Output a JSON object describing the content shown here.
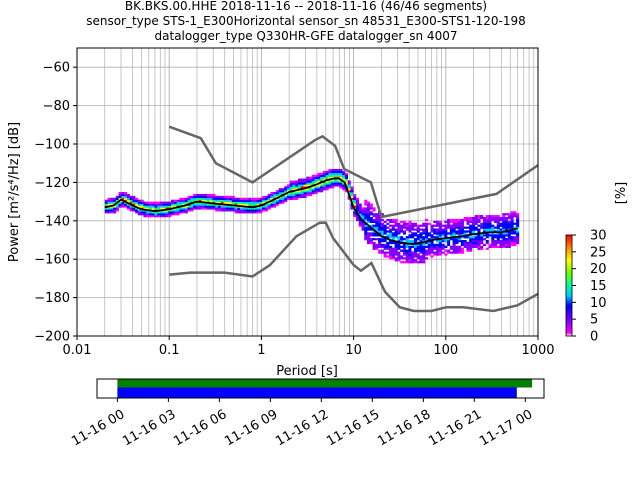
{
  "chart_data": [
    {
      "type": "ppsd",
      "title_lines": [
        "BK.BKS.00.HHE   2018-11-16 -- 2018-11-16  (46/46 segments)",
        "sensor_type STS-1_E300Horizontal sensor_sn 48531_E300-STS1-120-198",
        "datalogger_type Q330HR-GFE datalogger_sn 4007"
      ],
      "xlabel": "Period [s]",
      "ylabel": "Power [m²/s⁴/Hz] [dB]",
      "xscale": "log",
      "xlim": [
        0.01,
        1000
      ],
      "ylim": [
        -200,
        -50
      ],
      "x_ticks": [
        0.01,
        0.1,
        1,
        10,
        100,
        1000
      ],
      "x_tick_labels": [
        "0.01",
        "0.1",
        "1",
        "10",
        "100",
        "1000"
      ],
      "y_ticks": [
        -200,
        -180,
        -160,
        -140,
        -120,
        -100,
        -80,
        -60
      ],
      "y_tick_labels": [
        "−200",
        "−180",
        "−160",
        "−140",
        "−120",
        "−100",
        "−80",
        "−60"
      ],
      "grid": true,
      "noise_models": {
        "high_noise_model": [
          [
            0.1,
            -91
          ],
          [
            0.22,
            -97
          ],
          [
            0.32,
            -110
          ],
          [
            0.8,
            -120
          ],
          [
            3.8,
            -98
          ],
          [
            4.6,
            -96
          ],
          [
            6.3,
            -101
          ],
          [
            7.9,
            -113
          ],
          [
            15.4,
            -120
          ],
          [
            20,
            -138
          ],
          [
            354.8,
            -126
          ],
          [
            1000,
            -111
          ]
        ],
        "low_noise_model": [
          [
            0.1,
            -168
          ],
          [
            0.17,
            -167
          ],
          [
            0.4,
            -167
          ],
          [
            0.8,
            -169
          ],
          [
            1.24,
            -163
          ],
          [
            2.4,
            -148
          ],
          [
            4.3,
            -141
          ],
          [
            5.0,
            -141
          ],
          [
            6.0,
            -149
          ],
          [
            10,
            -163
          ],
          [
            12,
            -166
          ],
          [
            15.6,
            -162
          ],
          [
            21.9,
            -177
          ],
          [
            31.6,
            -185
          ],
          [
            45,
            -187
          ],
          [
            70,
            -187
          ],
          [
            101,
            -185
          ],
          [
            154,
            -185
          ],
          [
            328,
            -187
          ],
          [
            600,
            -184
          ],
          [
            1000,
            -178
          ]
        ]
      },
      "mean_psd": [
        [
          0.02,
          -133
        ],
        [
          0.025,
          -132
        ],
        [
          0.03,
          -129
        ],
        [
          0.04,
          -132
        ],
        [
          0.05,
          -134
        ],
        [
          0.07,
          -135
        ],
        [
          0.1,
          -134
        ],
        [
          0.15,
          -132
        ],
        [
          0.2,
          -130
        ],
        [
          0.3,
          -131
        ],
        [
          0.5,
          -132
        ],
        [
          0.8,
          -133
        ],
        [
          1,
          -132
        ],
        [
          1.5,
          -128
        ],
        [
          2,
          -125
        ],
        [
          3,
          -123
        ],
        [
          4,
          -121
        ],
        [
          5,
          -119
        ],
        [
          6,
          -118
        ],
        [
          7,
          -118
        ],
        [
          8,
          -120
        ],
        [
          9,
          -127
        ],
        [
          10,
          -133
        ],
        [
          12,
          -139
        ],
        [
          15,
          -143
        ],
        [
          20,
          -148
        ],
        [
          25,
          -150
        ],
        [
          30,
          -151
        ],
        [
          40,
          -152
        ],
        [
          50,
          -152
        ],
        [
          70,
          -150
        ],
        [
          100,
          -149
        ],
        [
          150,
          -148
        ],
        [
          200,
          -147
        ],
        [
          300,
          -146
        ],
        [
          400,
          -146
        ],
        [
          600,
          -144
        ]
      ],
      "colorbar": {
        "label": "[%]",
        "range": [
          0,
          30
        ],
        "ticks": [
          0,
          5,
          10,
          15,
          20,
          25,
          30
        ],
        "colormap": "pqlx"
      }
    },
    {
      "type": "timeline",
      "x_tick_labels": [
        "11-16 00",
        "11-16 03",
        "11-16 06",
        "11-16 09",
        "11-16 12",
        "11-16 15",
        "11-16 18",
        "11-16 21",
        "11-17 00"
      ],
      "x_tick_hours": [
        0,
        3,
        6,
        9,
        12,
        15,
        18,
        21,
        24
      ],
      "xlim_hours": [
        -1.2,
        25.1
      ],
      "bars": [
        {
          "start_hour": 0,
          "end_hour": 24.4,
          "color": "#008000"
        },
        {
          "start_hour": 0,
          "end_hour": 23.5,
          "color": "#0000ff"
        }
      ]
    }
  ]
}
